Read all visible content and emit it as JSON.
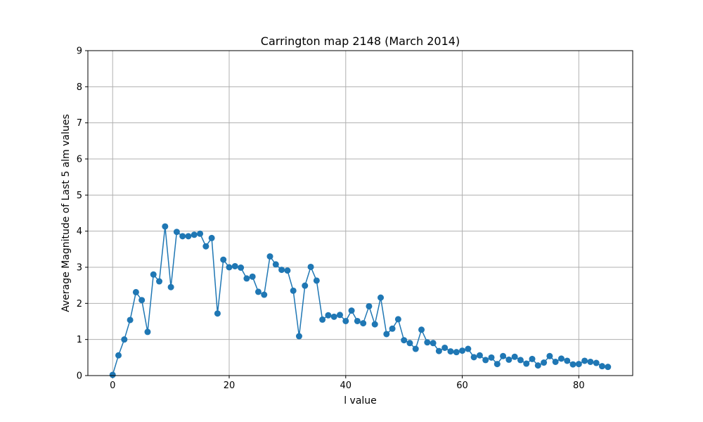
{
  "chart_data": {
    "type": "line",
    "title": "Carrington map 2148 (March 2014)",
    "xlabel": "l value",
    "ylabel": "Average Magnitude of Last 5 alm values",
    "xlim": [
      -4.25,
      89.25
    ],
    "ylim": [
      0,
      9
    ],
    "xticks": [
      0,
      20,
      40,
      60,
      80
    ],
    "yticks": [
      0,
      1,
      2,
      3,
      4,
      5,
      6,
      7,
      8,
      9
    ],
    "grid": true,
    "color": "#1f77b4",
    "marker": "circle",
    "series": [
      {
        "x": [
          0,
          1,
          2,
          3,
          4,
          5,
          6,
          7,
          8,
          9,
          10,
          11,
          12,
          13,
          14,
          15,
          16,
          17,
          18,
          19,
          20,
          21,
          22,
          23,
          24,
          25,
          26,
          27,
          28,
          29,
          30,
          31,
          32,
          33,
          34,
          35,
          36,
          37,
          38,
          39,
          40,
          41,
          42,
          43,
          44,
          45,
          46,
          47,
          48,
          49,
          50,
          51,
          52,
          53,
          54,
          55,
          56,
          57,
          58,
          59,
          60,
          61,
          62,
          63,
          64,
          65,
          66,
          67,
          68,
          69,
          70,
          71,
          72,
          73,
          74,
          75,
          76,
          77,
          78,
          79,
          80,
          81,
          82,
          83,
          84,
          85
        ],
        "values": [
          0.02,
          0.56,
          1.0,
          1.54,
          2.31,
          2.09,
          1.21,
          2.8,
          2.61,
          4.13,
          2.45,
          3.98,
          3.86,
          3.86,
          3.9,
          3.93,
          3.58,
          3.81,
          1.72,
          3.21,
          3.0,
          3.03,
          2.99,
          2.69,
          2.74,
          2.32,
          2.24,
          3.3,
          3.08,
          2.93,
          2.91,
          2.35,
          1.09,
          2.49,
          3.01,
          2.63,
          1.55,
          1.67,
          1.63,
          1.68,
          1.51,
          1.8,
          1.51,
          1.45,
          1.92,
          1.42,
          2.16,
          1.15,
          1.3,
          1.56,
          0.98,
          0.9,
          0.74,
          1.27,
          0.92,
          0.9,
          0.68,
          0.77,
          0.67,
          0.65,
          0.69,
          0.74,
          0.51,
          0.56,
          0.43,
          0.5,
          0.32,
          0.54,
          0.44,
          0.52,
          0.43,
          0.33,
          0.46,
          0.28,
          0.36,
          0.54,
          0.38,
          0.47,
          0.41,
          0.31,
          0.32,
          0.41,
          0.38,
          0.35,
          0.26,
          0.24
        ]
      }
    ]
  }
}
